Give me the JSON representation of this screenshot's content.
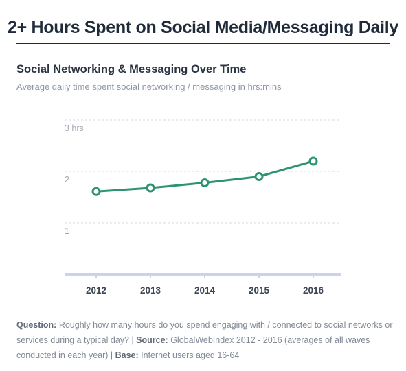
{
  "header": {
    "title": "2+ Hours Spent on Social Media/Messaging Daily"
  },
  "chart_data": {
    "type": "line",
    "title": "Social Networking & Messaging Over Time",
    "subtitle": "Average daily time spent social networking / messaging in hrs:mins",
    "categories": [
      "2012",
      "2013",
      "2014",
      "2015",
      "2016"
    ],
    "series": [
      {
        "values": [
          1.61,
          1.68,
          1.78,
          1.9,
          2.2
        ]
      }
    ],
    "ylim": [
      0,
      3
    ],
    "y_ticks": [
      {
        "value": 1,
        "label": "1"
      },
      {
        "value": 2,
        "label": "2"
      },
      {
        "value": 3,
        "label": "3 hrs"
      }
    ],
    "grid": true,
    "xlabel": "",
    "ylabel": "",
    "colors": {
      "line": "#2e9470",
      "marker_fill": "#ffffff",
      "grid": "#d5dae0",
      "axis": "#c9d3ee",
      "tick_text": "#3d4654",
      "y_tick_text": "#a3abb6"
    }
  },
  "footnote": {
    "question_label": "Question:",
    "question_text": " Roughly how many hours do you spend engaging with / connected to social networks or services during a typical day? | ",
    "source_label": "Source:",
    "source_text": " GlobalWebIndex 2012 - 2016 (averages of all waves conducted in each year) | ",
    "base_label": "Base:",
    "base_text": " Internet users aged 16-64"
  }
}
